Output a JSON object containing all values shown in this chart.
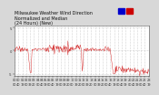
{
  "title_line1": "Milwaukee Weather Wind Direction",
  "title_line2": "Normalized and Median",
  "title_line3": "(24 Hours) (New)",
  "background_color": "#d8d8d8",
  "plot_bg_color": "#ffffff",
  "line_color": "#cc0000",
  "ylim": [
    -5.5,
    5.5
  ],
  "ytick_vals": [
    -5,
    0,
    5
  ],
  "ytick_labels": [
    "-5",
    " 0",
    " 5"
  ],
  "title_fontsize": 3.5,
  "tick_fontsize": 2.5,
  "legend_blue": "#0000cc",
  "legend_red": "#cc0000",
  "n_points": 288,
  "grid_color": "#aaaaaa",
  "spine_color": "#555555"
}
